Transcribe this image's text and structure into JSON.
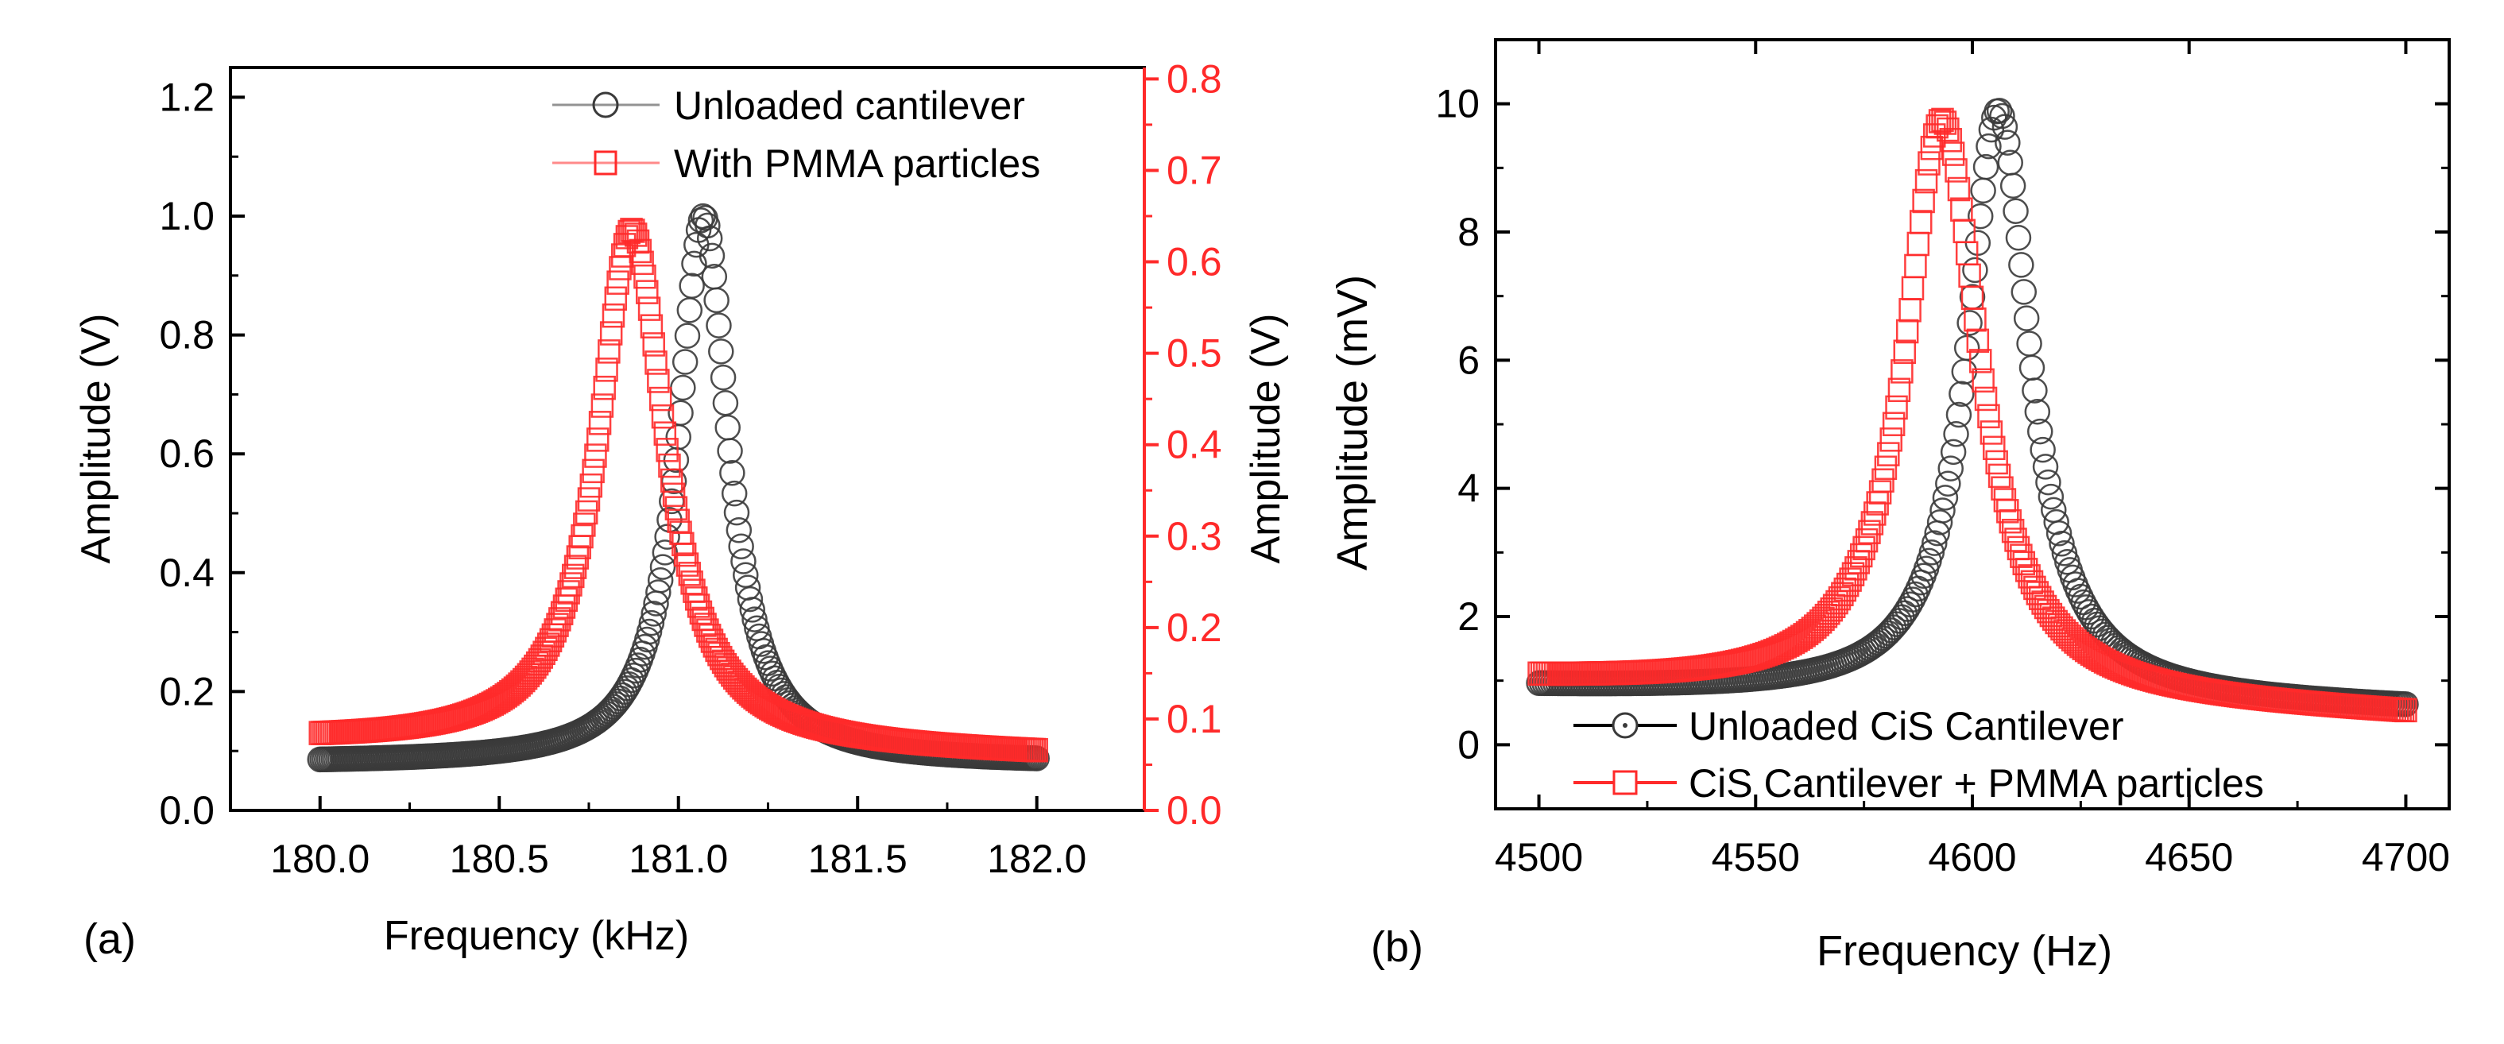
{
  "colors": {
    "primary": "#3a3a3a",
    "secondary": "#ff2a2a",
    "axis": "#000000",
    "axis_right_a": "#ff2a2a"
  },
  "chart_data": [
    {
      "type": "line",
      "panel_label": "(a)",
      "title": "",
      "xlabel": "Frequency (kHz)",
      "ylabel": "Amplitude (V)",
      "ylabel_right": "Amplitude (V)",
      "xlim": [
        179.75,
        182.3
      ],
      "ylim": [
        0,
        1.25
      ],
      "ylim_right": [
        0,
        0.8125
      ],
      "xticks": [
        180.0,
        180.5,
        181.0,
        181.5,
        182.0
      ],
      "xtick_labels": [
        "180.0",
        "180.5",
        "181.0",
        "181.5",
        "182.0"
      ],
      "yticks": [
        0.0,
        0.2,
        0.4,
        0.6,
        0.8,
        1.0,
        1.2
      ],
      "ytick_labels": [
        "0.0",
        "0.2",
        "0.4",
        "0.6",
        "0.8",
        "1.0",
        "1.2"
      ],
      "yticks_right": [
        0.0,
        0.1,
        0.2,
        0.3,
        0.4,
        0.5,
        0.6,
        0.7,
        0.8
      ],
      "ytick_labels_right": [
        "0.0",
        "0.1",
        "0.2",
        "0.3",
        "0.4",
        "0.5",
        "0.6",
        "0.7",
        "0.8"
      ],
      "grid": false,
      "legend_position": "top-right",
      "series": [
        {
          "name": "Unloaded cantilever",
          "marker": "circle",
          "color": "#3a3a3a",
          "axis": "left",
          "x_start": 180.0,
          "x_end": 182.0,
          "peak_x": 181.07,
          "peak_y": 1.0,
          "half_width": 0.085,
          "x": [
            180.0,
            180.5,
            180.75,
            180.9,
            181.0,
            181.07,
            181.15,
            181.3,
            181.5,
            182.0
          ],
          "y": [
            0.08,
            0.14,
            0.24,
            0.46,
            0.8,
            1.0,
            0.78,
            0.35,
            0.17,
            0.08
          ]
        },
        {
          "name": "With PMMA particles",
          "marker": "square",
          "color": "#ff2a2a",
          "axis": "right",
          "x_start": 180.0,
          "x_end": 182.0,
          "peak_x": 180.87,
          "peak_y": 0.635,
          "half_width": 0.115,
          "x": [
            180.0,
            180.5,
            180.7,
            180.8,
            180.87,
            180.95,
            181.1,
            181.3,
            181.5,
            182.0
          ],
          "y": [
            0.075,
            0.15,
            0.3,
            0.5,
            0.635,
            0.5,
            0.22,
            0.11,
            0.085,
            0.06
          ]
        }
      ]
    },
    {
      "type": "line",
      "panel_label": "(b)",
      "title": "",
      "xlabel": "Frequency (Hz)",
      "ylabel": "Amplitude (mV)",
      "xlim": [
        4490,
        4710
      ],
      "ylim": [
        -1,
        11
      ],
      "xticks": [
        4500,
        4550,
        4600,
        4650,
        4700
      ],
      "xtick_labels": [
        "4500",
        "4550",
        "4600",
        "4650",
        "4700"
      ],
      "yticks": [
        0,
        2,
        4,
        6,
        8,
        10
      ],
      "ytick_labels": [
        "0",
        "2",
        "4",
        "6",
        "8",
        "10"
      ],
      "grid": false,
      "legend_position": "bottom-center",
      "series": [
        {
          "name": "Unloaded CiS Cantilever",
          "marker": "circle",
          "color": "#3a3a3a",
          "x_start": 4500,
          "x_end": 4700,
          "peak_x": 4606,
          "peak_y": 9.9,
          "half_width": 8.8,
          "x": [
            4500,
            4550,
            4580,
            4595,
            4606,
            4615,
            4630,
            4650,
            4700
          ],
          "y": [
            0.9,
            1.6,
            3.5,
            7.0,
            9.9,
            7.8,
            3.2,
            1.5,
            0.55
          ]
        },
        {
          "name": "CiS Cantilever + PMMA particles",
          "marker": "square",
          "color": "#ff2a2a",
          "x_start": 4500,
          "x_end": 4700,
          "peak_x": 4593,
          "peak_y": 9.75,
          "half_width": 10.5,
          "x": [
            4500,
            4550,
            4575,
            4585,
            4593,
            4605,
            4625,
            4650,
            4700
          ],
          "y": [
            1.0,
            2.2,
            4.8,
            7.6,
            9.75,
            7.0,
            2.2,
            1.1,
            0.45
          ]
        }
      ]
    }
  ]
}
